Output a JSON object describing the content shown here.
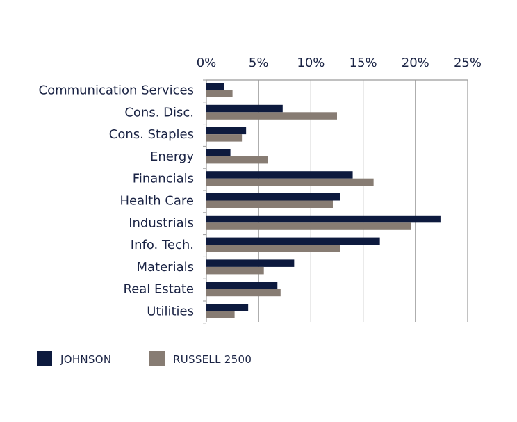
{
  "colors": {
    "johnson": "#0d1a3e",
    "russell": "#877c73",
    "grid": "#9a9a9a",
    "text": "#1a2344"
  },
  "chart_data": {
    "type": "bar",
    "orientation": "horizontal",
    "categories": [
      "Communication Services",
      "Cons. Disc.",
      "Cons. Staples",
      "Energy",
      "Financials",
      "Health Care",
      "Industrials",
      "Info. Tech.",
      "Materials",
      "Real Estate",
      "Utilities"
    ],
    "series": [
      {
        "name": "JOHNSON",
        "values": [
          1.7,
          7.3,
          3.8,
          2.3,
          14.0,
          12.8,
          22.4,
          16.6,
          8.4,
          6.8,
          4.0
        ]
      },
      {
        "name": "RUSSELL 2500",
        "values": [
          2.5,
          12.5,
          3.4,
          5.9,
          16.0,
          12.1,
          19.6,
          12.8,
          5.5,
          7.1,
          2.7
        ]
      }
    ],
    "xlim": [
      0,
      25
    ],
    "xticks": [
      "0%",
      "5%",
      "10%",
      "15%",
      "20%",
      "25%"
    ],
    "xtick_values": [
      0,
      5,
      10,
      15,
      20,
      25
    ],
    "x_axis_position": "top",
    "grid": true,
    "legend_position": "bottom-left",
    "title": "",
    "xlabel": "",
    "ylabel": ""
  }
}
